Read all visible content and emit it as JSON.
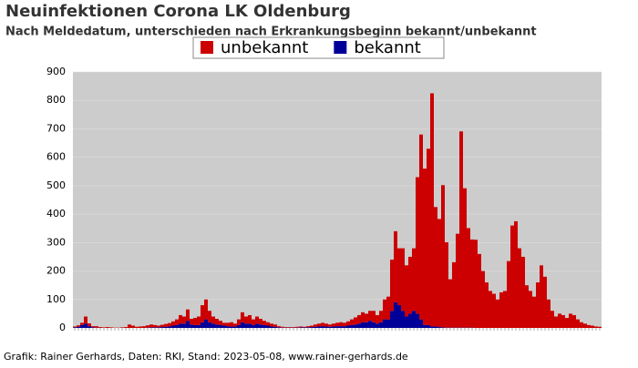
{
  "chart_data": {
    "type": "stacked-bar",
    "title": "Neuinfektionen Corona LK Oldenburg",
    "subtitle": "Nach Meldedatum, unterschieden nach Erkrankungsbeginn bekannt/unbekannt",
    "footer": "Grafik: Rainer Gerhards, Daten: RKI, Stand: 2023-05-08, www.rainer-gerhards.de",
    "categories": [
      null,
      null,
      null,
      null,
      null,
      null,
      null,
      null,
      null,
      null,
      null,
      null,
      null,
      null,
      null,
      null,
      null,
      null,
      null,
      null,
      null,
      null,
      null,
      null,
      null,
      null,
      null,
      null,
      null,
      null,
      null,
      null,
      null,
      null,
      null,
      null,
      null,
      null,
      null,
      null,
      null,
      null,
      null,
      null,
      null,
      null,
      null,
      null,
      null,
      null,
      null,
      null,
      null,
      null,
      null,
      null,
      null,
      null,
      null,
      null,
      null,
      null,
      null,
      null,
      null,
      null,
      null,
      null,
      null,
      null,
      null,
      null,
      null,
      null,
      null,
      null,
      null,
      null,
      null,
      null,
      null,
      null,
      null,
      null,
      null,
      null,
      null,
      null,
      null,
      null,
      null,
      null,
      null,
      null,
      null,
      null,
      null,
      null,
      null,
      null,
      null,
      null,
      null,
      null,
      null,
      null,
      null,
      null,
      null,
      null,
      null,
      null,
      null,
      null,
      null,
      null,
      null,
      null,
      null,
      null,
      null,
      null,
      null,
      null,
      null,
      null,
      null,
      null,
      null,
      null,
      null,
      null,
      null,
      null,
      null,
      null,
      null,
      null,
      null,
      null,
      null,
      null,
      null,
      null,
      null
    ],
    "series": [
      {
        "name": "bekannt",
        "color": "#000099",
        "values": [
          2,
          4,
          10,
          15,
          6,
          2,
          1,
          0,
          0,
          0,
          0,
          0,
          0,
          0,
          0,
          0,
          0,
          0,
          0,
          0,
          1,
          2,
          2,
          2,
          3,
          4,
          5,
          8,
          10,
          15,
          15,
          25,
          12,
          10,
          10,
          20,
          30,
          20,
          15,
          12,
          10,
          8,
          6,
          5,
          5,
          10,
          20,
          15,
          15,
          10,
          15,
          12,
          10,
          8,
          5,
          4,
          2,
          1,
          1,
          1,
          1,
          1,
          2,
          2,
          2,
          3,
          4,
          5,
          6,
          5,
          4,
          5,
          6,
          6,
          6,
          8,
          10,
          12,
          15,
          20,
          20,
          25,
          20,
          15,
          20,
          30,
          30,
          60,
          90,
          80,
          60,
          40,
          50,
          60,
          50,
          30,
          10,
          10,
          5,
          5,
          3,
          2,
          1,
          1,
          1,
          1,
          1,
          1,
          1,
          1,
          0,
          0,
          0,
          0,
          0,
          0,
          0,
          0,
          0,
          0,
          0,
          0,
          0,
          0,
          0,
          0,
          0,
          0,
          0,
          0,
          0,
          0,
          0,
          0,
          0,
          0,
          0,
          0,
          0,
          0,
          0,
          0,
          0,
          0,
          0
        ]
      },
      {
        "name": "unbekannt",
        "color": "#cc0000",
        "values": [
          3,
          5,
          8,
          25,
          10,
          4,
          5,
          3,
          2,
          3,
          2,
          1,
          1,
          2,
          3,
          12,
          8,
          4,
          5,
          6,
          8,
          10,
          8,
          6,
          8,
          10,
          12,
          15,
          20,
          30,
          25,
          40,
          20,
          25,
          30,
          60,
          70,
          40,
          25,
          20,
          15,
          10,
          12,
          15,
          10,
          20,
          35,
          25,
          30,
          20,
          25,
          20,
          15,
          12,
          10,
          8,
          4,
          3,
          2,
          2,
          2,
          3,
          3,
          2,
          4,
          5,
          8,
          10,
          12,
          10,
          8,
          10,
          12,
          14,
          12,
          15,
          20,
          25,
          30,
          35,
          30,
          35,
          40,
          30,
          40,
          70,
          80,
          180,
          250,
          200,
          220,
          180,
          200,
          220,
          480,
          650,
          550,
          620,
          820,
          420,
          380,
          500,
          300,
          170,
          230,
          330,
          690,
          490,
          350,
          310,
          310,
          260,
          200,
          160,
          130,
          120,
          100,
          125,
          130,
          235,
          360,
          375,
          280,
          250,
          150,
          130,
          110,
          160,
          220,
          180,
          100,
          60,
          40,
          50,
          45,
          35,
          50,
          45,
          30,
          20,
          15,
          10,
          8,
          5,
          4
        ]
      }
    ],
    "legend_order": [
      1,
      0
    ],
    "ylim": [
      0,
      900
    ],
    "yticks": [
      0,
      100,
      200,
      300,
      400,
      500,
      600,
      700,
      800,
      900
    ],
    "grid": true
  }
}
